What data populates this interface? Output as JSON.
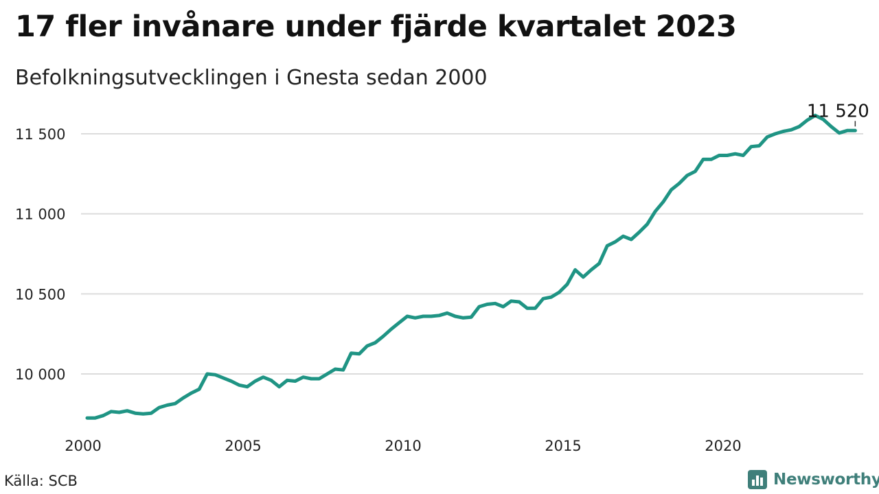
{
  "header": {
    "title": "17 fler invånare under fjärde kvartalet 2023",
    "subtitle": "Befolkningsutvecklingen i Gnesta sedan 2000"
  },
  "footer": {
    "source": "Källa: SCB",
    "brand": "Newsworthy",
    "brand_icon": "bar-chart-icon"
  },
  "colors": {
    "line": "#1f9484",
    "brand": "#3f7f7a"
  },
  "chart_data": {
    "type": "line",
    "title": "17 fler invånare under fjärde kvartalet 2023",
    "subtitle": "Befolkningsutvecklingen i Gnesta sedan 2000",
    "xlabel": "",
    "ylabel": "",
    "xlim": [
      2000,
      2024.25
    ],
    "ylim": [
      9700,
      11650
    ],
    "y_ticks": [
      10000,
      10500,
      11000,
      11500
    ],
    "y_tick_labels": [
      "10 000",
      "10 500",
      "11 000",
      "11 500"
    ],
    "x_ticks": [
      2000,
      2005,
      2010,
      2015,
      2020
    ],
    "x_tick_labels": [
      "2000",
      "2005",
      "2010",
      "2015",
      "2020"
    ],
    "grid": "horizontal",
    "legend": "none",
    "end_label": "11 520",
    "series": [
      {
        "x": [
          2000.0,
          2000.25,
          2000.5,
          2000.75,
          2001.0,
          2001.25,
          2001.5,
          2001.75,
          2002.0,
          2002.25,
          2002.5,
          2002.75,
          2003.0,
          2003.25,
          2003.5,
          2003.75,
          2004.0,
          2004.25,
          2004.5,
          2004.75,
          2005.0,
          2005.25,
          2005.5,
          2005.75,
          2006.0,
          2006.25,
          2006.5,
          2006.75,
          2007.0,
          2007.25,
          2007.5,
          2007.75,
          2008.0,
          2008.25,
          2008.5,
          2008.75,
          2009.0,
          2009.25,
          2009.5,
          2009.75,
          2010.0,
          2010.25,
          2010.5,
          2010.75,
          2011.0,
          2011.25,
          2011.5,
          2011.75,
          2012.0,
          2012.25,
          2012.5,
          2012.75,
          2013.0,
          2013.25,
          2013.5,
          2013.75,
          2014.0,
          2014.25,
          2014.5,
          2014.75,
          2015.0,
          2015.25,
          2015.5,
          2015.75,
          2016.0,
          2016.25,
          2016.5,
          2016.75,
          2017.0,
          2017.25,
          2017.5,
          2017.75,
          2018.0,
          2018.25,
          2018.5,
          2018.75,
          2019.0,
          2019.25,
          2019.5,
          2019.75,
          2020.0,
          2020.25,
          2020.5,
          2020.75,
          2021.0,
          2021.25,
          2021.5,
          2021.75,
          2022.0,
          2022.25,
          2022.5,
          2022.75,
          2023.0,
          2023.25,
          2023.5,
          2023.75,
          2024.0
        ],
        "values": [
          9725,
          9725,
          9740,
          9765,
          9760,
          9770,
          9755,
          9750,
          9755,
          9790,
          9805,
          9815,
          9850,
          9880,
          9905,
          10000,
          9995,
          9975,
          9955,
          9930,
          9920,
          9955,
          9980,
          9960,
          9920,
          9960,
          9955,
          9980,
          9970,
          9970,
          10000,
          10030,
          10025,
          10130,
          10125,
          10175,
          10195,
          10235,
          10280,
          10320,
          10360,
          10350,
          10360,
          10360,
          10365,
          10380,
          10360,
          10350,
          10355,
          10420,
          10435,
          10440,
          10420,
          10455,
          10450,
          10410,
          10410,
          10470,
          10480,
          10510,
          10560,
          10650,
          10605,
          10650,
          10690,
          10800,
          10825,
          10860,
          10840,
          10885,
          10935,
          11015,
          11075,
          11150,
          11190,
          11240,
          11265,
          11340,
          11340,
          11365,
          11365,
          11375,
          11365,
          11420,
          11425,
          11480,
          11500,
          11515,
          11525,
          11545,
          11585,
          11615,
          11590,
          11545,
          11505,
          11520,
          11520
        ]
      }
    ]
  }
}
